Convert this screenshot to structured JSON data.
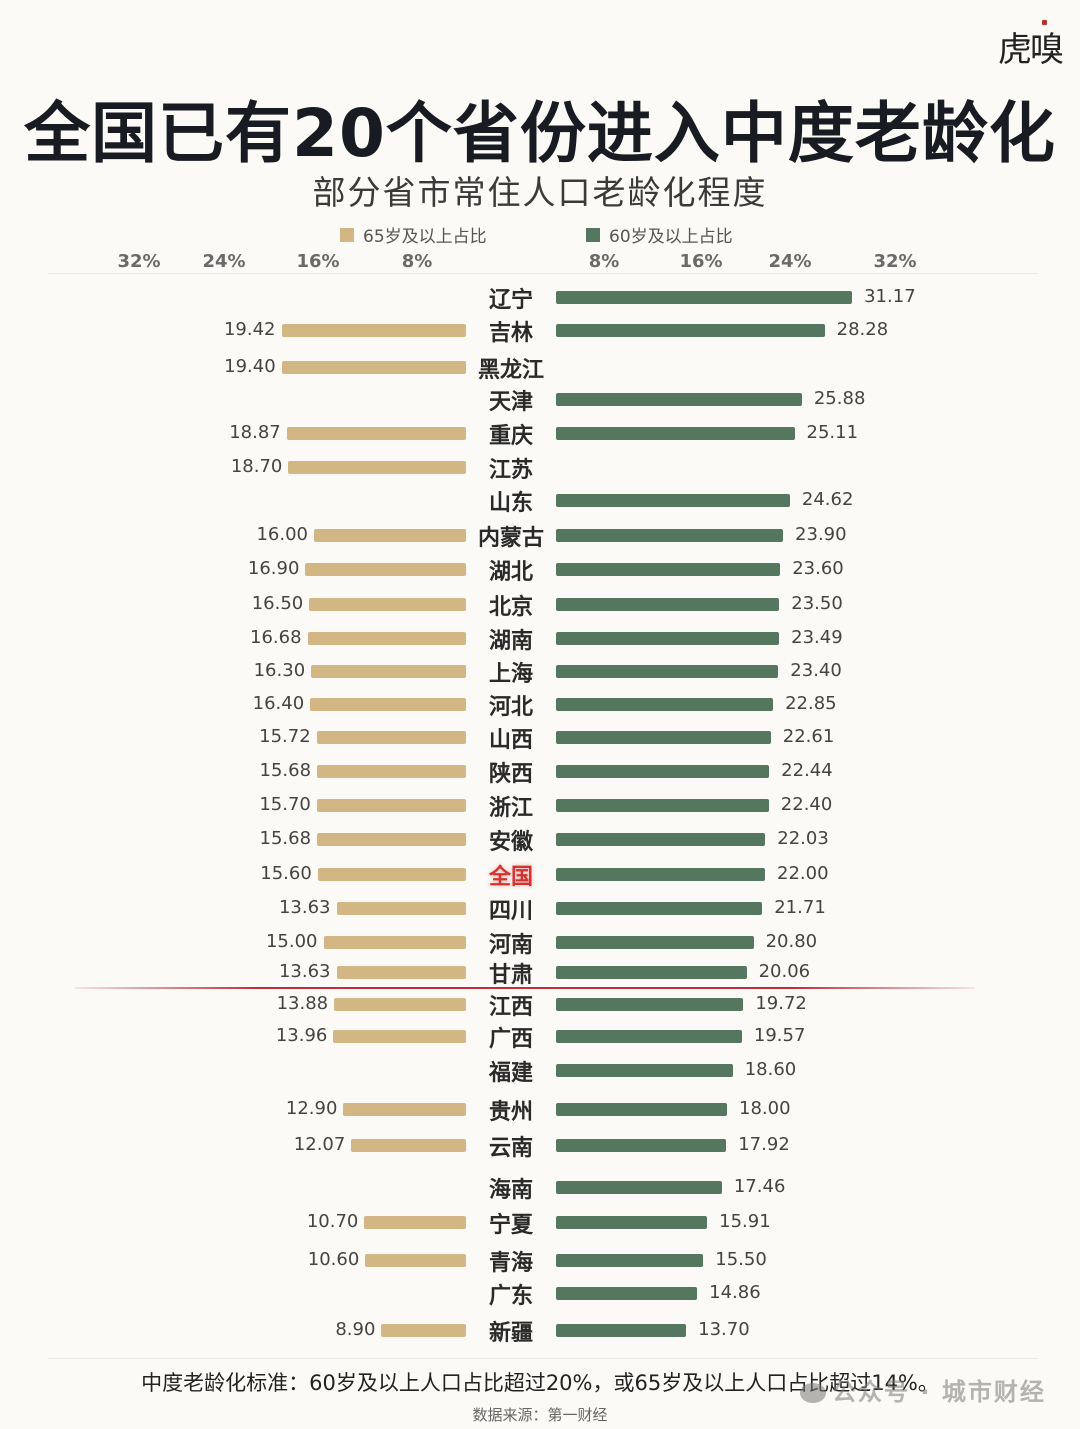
{
  "brand": {
    "logo_text": "虎嗅"
  },
  "header": {
    "title": "全国已有20个省份进入中度老龄化",
    "subtitle": "部分省市常住人口老龄化程度"
  },
  "legend": {
    "left": {
      "label": "65岁及以上占比",
      "color": "#d2b684"
    },
    "right": {
      "label": "60岁及以上占比",
      "color": "#56775f"
    }
  },
  "axis": {
    "left_ticks": [
      "32%",
      "24%",
      "16%",
      "8%"
    ],
    "right_ticks": [
      "8%",
      "16%",
      "24%",
      "32%"
    ]
  },
  "chart_data": {
    "type": "bar",
    "orientation": "horizontal-butterfly",
    "title": "全国已有20个省份进入中度老龄化",
    "subtitle": "部分省市常住人口老龄化程度",
    "xlabel": "",
    "ylabel": "",
    "xlim": [
      0,
      32
    ],
    "grid": false,
    "legend_position": "top",
    "categories": [
      "辽宁",
      "吉林",
      "黑龙江",
      "天津",
      "重庆",
      "江苏",
      "山东",
      "内蒙古",
      "湖北",
      "北京",
      "湖南",
      "上海",
      "河北",
      "山西",
      "陕西",
      "浙江",
      "安徽",
      "全国",
      "四川",
      "河南",
      "甘肃",
      "江西",
      "广西",
      "福建",
      "贵州",
      "云南",
      "海南",
      "宁夏",
      "青海",
      "广东",
      "新疆"
    ],
    "series": [
      {
        "name": "65岁及以上占比",
        "side": "left",
        "color": "#d2b684",
        "values": [
          null,
          19.42,
          19.4,
          null,
          18.87,
          18.7,
          null,
          16.0,
          16.9,
          16.5,
          16.68,
          16.3,
          16.4,
          15.72,
          15.68,
          15.7,
          15.68,
          15.6,
          13.63,
          15.0,
          13.63,
          13.88,
          13.96,
          null,
          12.9,
          12.07,
          null,
          10.7,
          10.6,
          null,
          8.9
        ]
      },
      {
        "name": "60岁及以上占比",
        "side": "right",
        "color": "#56775f",
        "values": [
          31.17,
          28.28,
          null,
          25.88,
          25.11,
          null,
          24.62,
          23.9,
          23.6,
          23.5,
          23.49,
          23.4,
          22.85,
          22.61,
          22.44,
          22.4,
          22.03,
          22.0,
          21.71,
          20.8,
          20.06,
          19.72,
          19.57,
          18.6,
          18.0,
          17.92,
          17.46,
          15.91,
          15.5,
          14.86,
          13.7
        ]
      }
    ],
    "highlight_category": "全国",
    "annotations": [
      "红线：中度老龄化分界（甘肃与江西之间）"
    ]
  },
  "rows": [
    {
      "name": "辽宁",
      "v65": "",
      "v60": "31.17"
    },
    {
      "name": "吉林",
      "v65": "19.42",
      "v60": "28.28"
    },
    {
      "name": "黑龙江",
      "v65": "19.40",
      "v60": ""
    },
    {
      "name": "天津",
      "v65": "",
      "v60": "25.88"
    },
    {
      "name": "重庆",
      "v65": "18.87",
      "v60": "25.11"
    },
    {
      "name": "江苏",
      "v65": "18.70",
      "v60": ""
    },
    {
      "name": "山东",
      "v65": "",
      "v60": "24.62"
    },
    {
      "name": "内蒙古",
      "v65": "16.00",
      "v60": "23.90"
    },
    {
      "name": "湖北",
      "v65": "16.90",
      "v60": "23.60"
    },
    {
      "name": "北京",
      "v65": "16.50",
      "v60": "23.50"
    },
    {
      "name": "湖南",
      "v65": "16.68",
      "v60": "23.49"
    },
    {
      "name": "上海",
      "v65": "16.30",
      "v60": "23.40"
    },
    {
      "name": "河北",
      "v65": "16.40",
      "v60": "22.85"
    },
    {
      "name": "山西",
      "v65": "15.72",
      "v60": "22.61"
    },
    {
      "name": "陕西",
      "v65": "15.68",
      "v60": "22.44"
    },
    {
      "name": "浙江",
      "v65": "15.70",
      "v60": "22.40"
    },
    {
      "name": "安徽",
      "v65": "15.68",
      "v60": "22.03"
    },
    {
      "name": "全国",
      "v65": "15.60",
      "v60": "22.00"
    },
    {
      "name": "四川",
      "v65": "13.63",
      "v60": "21.71"
    },
    {
      "name": "河南",
      "v65": "15.00",
      "v60": "20.80"
    },
    {
      "name": "甘肃",
      "v65": "13.63",
      "v60": "20.06"
    },
    {
      "name": "江西",
      "v65": "13.88",
      "v60": "19.72"
    },
    {
      "name": "广西",
      "v65": "13.96",
      "v60": "19.57"
    },
    {
      "name": "福建",
      "v65": "",
      "v60": "18.60"
    },
    {
      "name": "贵州",
      "v65": "12.90",
      "v60": "18.00"
    },
    {
      "name": "云南",
      "v65": "12.07",
      "v60": "17.92"
    },
    {
      "name": "海南",
      "v65": "",
      "v60": "17.46"
    },
    {
      "name": "宁夏",
      "v65": "10.70",
      "v60": "15.91"
    },
    {
      "name": "青海",
      "v65": "10.60",
      "v60": "15.50"
    },
    {
      "name": "广东",
      "v65": "",
      "v60": "14.86"
    },
    {
      "name": "新疆",
      "v65": "8.90",
      "v60": "13.70"
    }
  ],
  "footer": {
    "note": "中度老龄化标准：60岁及以上人口占比超过20%，或65岁及以上人口占比超过14%。",
    "source": "数据来源：第一财经",
    "watermark": "公众号 · 城市财经"
  }
}
